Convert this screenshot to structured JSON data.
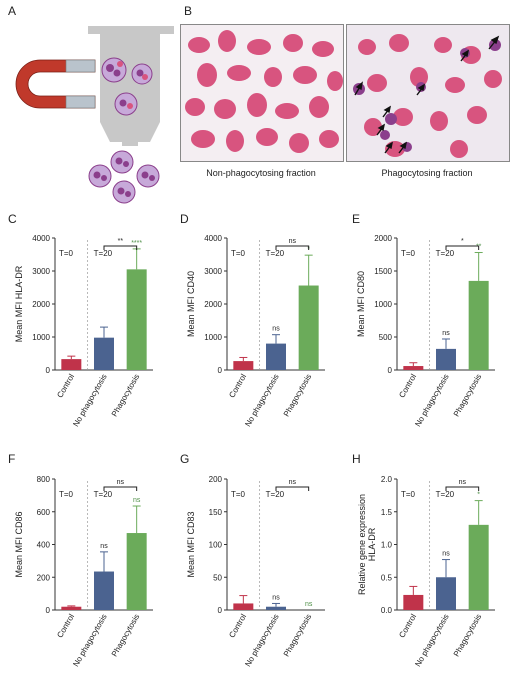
{
  "panel_letters": [
    "A",
    "B",
    "C",
    "D",
    "E",
    "F",
    "G",
    "H"
  ],
  "micro_captions": {
    "left": "Non-phagocytosing fraction",
    "right": "Phagocytosing fraction"
  },
  "colors": {
    "control": "#c0334a",
    "no_phago": "#4b6390",
    "phago": "#6bab5a",
    "sig": "#4e8f47",
    "cell_pink": "#d8547f",
    "cell_purple": "#8b3f8c",
    "bead": "#9aa5c4",
    "magnet_red": "#c0392b",
    "column": "#c8c8c8"
  },
  "icons": [
    "magnet-icon",
    "column-icon",
    "cell-icon",
    "arrow-icon"
  ],
  "chart_data": [
    {
      "type": "bar",
      "panel": "C",
      "categories": [
        "Control",
        "No phagocytosis",
        "Phagocytosis"
      ],
      "values": [
        330,
        980,
        3050
      ],
      "errors": [
        90,
        320,
        620
      ],
      "ylabel": "Mean MFI HLA-DR",
      "ylim": [
        0,
        4000
      ],
      "yticks": [
        0,
        1000,
        2000,
        3000,
        4000
      ],
      "time_labels": [
        "T=0",
        "T=20"
      ],
      "bar_sig": [
        "",
        "",
        "****"
      ],
      "bracket_sig": "**"
    },
    {
      "type": "bar",
      "panel": "D",
      "categories": [
        "Control",
        "No phagocytosis",
        "Phagocytosis"
      ],
      "values": [
        270,
        800,
        2560
      ],
      "errors": [
        110,
        270,
        920
      ],
      "ylabel": "Mean MFI CD40",
      "ylim": [
        0,
        4000
      ],
      "yticks": [
        0,
        1000,
        2000,
        3000,
        4000
      ],
      "time_labels": [
        "T=0",
        "T=20"
      ],
      "bar_sig": [
        "",
        "ns",
        "*"
      ],
      "bracket_sig": "ns"
    },
    {
      "type": "bar",
      "panel": "E",
      "categories": [
        "Control",
        "No phagocytosis",
        "Phagocytosis"
      ],
      "values": [
        60,
        320,
        1350
      ],
      "errors": [
        50,
        150,
        430
      ],
      "ylabel": "Mean MFI CD80",
      "ylim": [
        0,
        2000
      ],
      "yticks": [
        0,
        500,
        1000,
        1500,
        2000
      ],
      "time_labels": [
        "T=0",
        "T=20"
      ],
      "bar_sig": [
        "",
        "ns",
        "**"
      ],
      "bracket_sig": "*"
    },
    {
      "type": "bar",
      "panel": "F",
      "categories": [
        "Control",
        "No phagocytosis",
        "Phagocytosis"
      ],
      "values": [
        20,
        235,
        470
      ],
      "errors": [
        5,
        120,
        165
      ],
      "ylabel": "Mean MFI CD86",
      "ylim": [
        0,
        800
      ],
      "yticks": [
        0,
        200,
        400,
        600,
        800
      ],
      "time_labels": [
        "T=0",
        "T=20"
      ],
      "bar_sig": [
        "",
        "ns",
        "ns"
      ],
      "bracket_sig": "ns"
    },
    {
      "type": "bar",
      "panel": "G",
      "categories": [
        "Control",
        "No phagocytosis",
        "Phagocytosis"
      ],
      "values": [
        10,
        5,
        0
      ],
      "errors": [
        12,
        5,
        0
      ],
      "ylabel": "Mean MFI CD83",
      "ylim": [
        0,
        200
      ],
      "yticks": [
        0,
        50,
        100,
        150,
        200
      ],
      "time_labels": [
        "T=0",
        "T=20"
      ],
      "bar_sig": [
        "",
        "ns",
        "ns"
      ],
      "bracket_sig": "ns"
    },
    {
      "type": "bar",
      "panel": "H",
      "categories": [
        "Control",
        "No phagocytosis",
        "Phagocytosis"
      ],
      "values": [
        0.23,
        0.5,
        1.3
      ],
      "errors": [
        0.13,
        0.27,
        0.37
      ],
      "ylabel": "Relative gene expression HLA-DR",
      "ylabel_lines": [
        "Relative gene expression",
        "HLA-DR"
      ],
      "ylim": [
        0,
        2.0
      ],
      "yticks": [
        0.0,
        0.5,
        1.0,
        1.5,
        2.0
      ],
      "ytick_labels": [
        "0.0",
        "0.5",
        "1.0",
        "1.5",
        "2.0"
      ],
      "time_labels": [
        "T=0",
        "T=20"
      ],
      "bar_sig": [
        "",
        "ns",
        "*"
      ],
      "bracket_sig": "ns"
    }
  ]
}
